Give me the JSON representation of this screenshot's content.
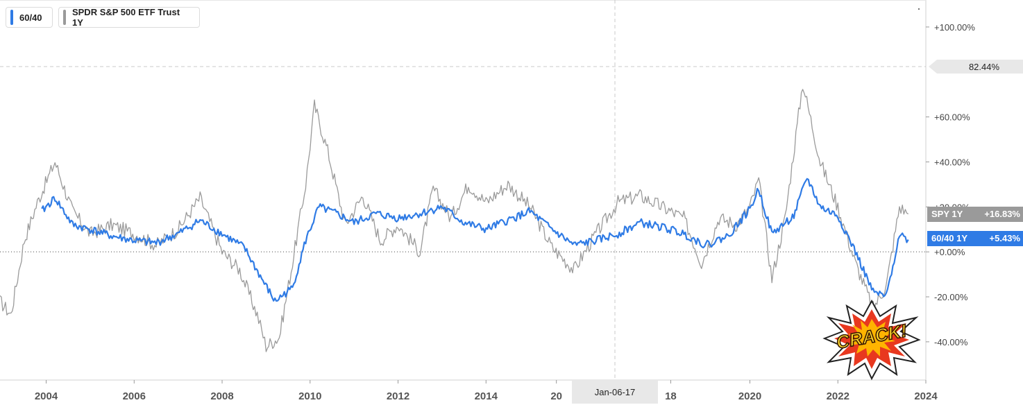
{
  "legend": [
    {
      "label": "60/40",
      "color": "#2f7be5"
    },
    {
      "label": "SPDR S&P 500 ETF Trust 1Y",
      "color": "#9a9a9a"
    }
  ],
  "crosshair": {
    "x_label": "Jan-06-17",
    "y_label": "82.44%"
  },
  "badges": [
    {
      "name": "SPY 1Y",
      "value": "+16.83%",
      "color": "#9a9a9a"
    },
    {
      "name": "60/40 1Y",
      "value": "+5.43%",
      "color": "#2f7be5"
    }
  ],
  "sticker_text": "CRACK!",
  "chart_data": {
    "type": "line",
    "title": "",
    "xlabel": "",
    "ylabel": "",
    "x_ticks": [
      "2004",
      "2006",
      "2008",
      "2010",
      "2012",
      "2014",
      "20",
      "18",
      "2020",
      "2022",
      "2024"
    ],
    "y_ticks": [
      "+100.00%",
      "+60.00%",
      "+40.00%",
      "+20.00%",
      "+0.00%",
      "-20.00%",
      "-40.00%"
    ],
    "ylim": [
      -57,
      112
    ],
    "xlim": [
      2002.95,
      2024.0
    ],
    "grid": false,
    "legend_position": "top-left",
    "series": [
      {
        "name": "60/40",
        "color": "#2f7be5",
        "x": [
          2003.9,
          2004.2,
          2004.6,
          2005.0,
          2005.5,
          2006.0,
          2006.5,
          2007.0,
          2007.5,
          2008.0,
          2008.5,
          2008.9,
          2009.2,
          2009.6,
          2009.9,
          2010.2,
          2010.6,
          2011.0,
          2011.5,
          2012.0,
          2012.5,
          2013.0,
          2013.5,
          2014.0,
          2014.5,
          2015.0,
          2015.5,
          2016.0,
          2016.5,
          2017.0,
          2017.5,
          2018.0,
          2018.5,
          2019.0,
          2019.5,
          2020.0,
          2020.2,
          2020.5,
          2021.0,
          2021.3,
          2021.6,
          2022.0,
          2022.4,
          2022.8,
          2023.1,
          2023.4,
          2023.6
        ],
        "y": [
          18,
          24,
          12,
          10,
          7,
          5,
          4,
          8,
          14,
          8,
          2,
          -12,
          -22,
          -16,
          5,
          20,
          17,
          13,
          17,
          15,
          17,
          20,
          13,
          10,
          14,
          18,
          10,
          3,
          5,
          8,
          13,
          11,
          8,
          3,
          7,
          19,
          28,
          8,
          16,
          33,
          20,
          16,
          0,
          -18,
          -20,
          8,
          5.43
        ]
      },
      {
        "name": "SPDR S&P 500 ETF Trust 1Y",
        "color": "#9a9a9a",
        "x": [
          2002.95,
          2003.2,
          2003.5,
          2003.8,
          2004.2,
          2004.6,
          2005.0,
          2005.5,
          2006.0,
          2006.5,
          2007.0,
          2007.5,
          2008.0,
          2008.4,
          2008.8,
          2009.0,
          2009.3,
          2009.6,
          2009.9,
          2010.1,
          2010.4,
          2010.8,
          2011.2,
          2011.6,
          2012.0,
          2012.5,
          2012.8,
          2013.2,
          2013.6,
          2014.0,
          2014.5,
          2015.0,
          2015.5,
          2016.0,
          2016.5,
          2017.0,
          2017.5,
          2018.0,
          2018.5,
          2018.9,
          2019.3,
          2019.7,
          2020.0,
          2020.2,
          2020.5,
          2020.8,
          2021.2,
          2021.6,
          2022.0,
          2022.4,
          2022.8,
          2023.1,
          2023.4,
          2023.6
        ],
        "y": [
          -22,
          -28,
          5,
          22,
          40,
          18,
          8,
          12,
          8,
          3,
          10,
          24,
          0,
          -8,
          -28,
          -42,
          -38,
          -5,
          30,
          65,
          45,
          12,
          25,
          5,
          12,
          0,
          28,
          15,
          30,
          22,
          30,
          20,
          2,
          -8,
          8,
          22,
          25,
          20,
          15,
          -5,
          15,
          12,
          20,
          32,
          -12,
          15,
          75,
          40,
          20,
          -5,
          -25,
          -15,
          20,
          16.83
        ]
      }
    ]
  }
}
